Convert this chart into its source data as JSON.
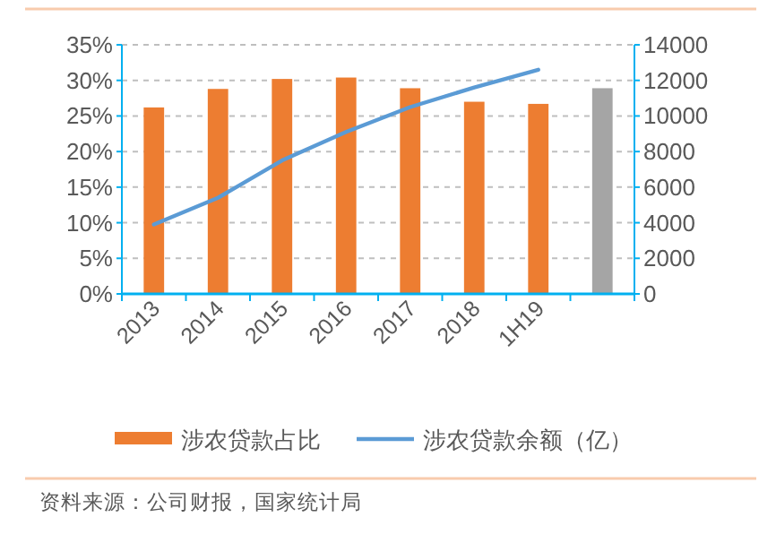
{
  "chart_data": {
    "type": "bar",
    "categories": [
      "2013",
      "2014",
      "2015",
      "2016",
      "2017",
      "2018",
      "1H19",
      null
    ],
    "series": [
      {
        "name": "涉农贷款占比",
        "colors": [
          "#ed7d31",
          "#ed7d31",
          "#ed7d31",
          "#ed7d31",
          "#ed7d31",
          "#ed7d31",
          "#ed7d31",
          "#a5a5a5"
        ],
        "color": "#ed7d31",
        "values": [
          26.2,
          28.8,
          30.2,
          30.4,
          28.9,
          27.0,
          26.7,
          28.9
        ]
      },
      {
        "name": "涉农贷款余额（亿）",
        "type": "line",
        "axis": "y2",
        "color": "#5b9bd5",
        "values": [
          3900,
          5400,
          7500,
          9100,
          10500,
          11600,
          12600,
          null
        ]
      }
    ],
    "ylim": [
      0,
      35
    ],
    "yticks": [
      {
        "value": 0,
        "label": "0%"
      },
      {
        "value": 5,
        "label": "5%"
      },
      {
        "value": 10,
        "label": "10%"
      },
      {
        "value": 15,
        "label": "15%"
      },
      {
        "value": 20,
        "label": "20%"
      },
      {
        "value": 25,
        "label": "25%"
      },
      {
        "value": 30,
        "label": "30%"
      },
      {
        "value": 35,
        "label": "35%"
      }
    ],
    "y2lim": [
      0,
      14000
    ],
    "y2ticks": [
      0,
      2000,
      4000,
      6000,
      8000,
      10000,
      12000,
      14000
    ],
    "grid": "y",
    "legend": "bottom",
    "marker": "none",
    "annotations": [
      "资料来源：公司财报，国家统计局"
    ]
  }
}
